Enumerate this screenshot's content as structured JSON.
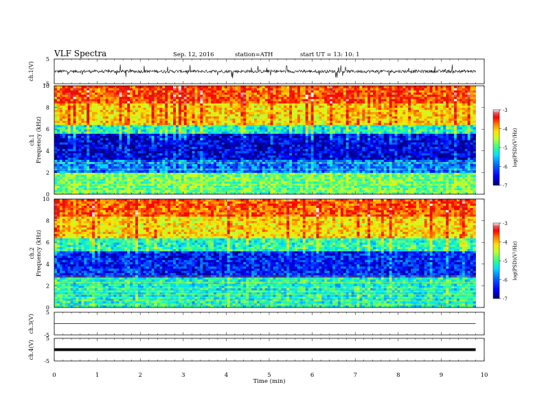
{
  "header": {
    "title": "VLF  Spectra",
    "date": "Sep. 12, 2016",
    "station": "station=ATH",
    "start": "start  UT  =   13: 10: 1"
  },
  "chart_data": [
    {
      "type": "line",
      "panel": "ch1-waveform",
      "ylabel": "ch.1(V)",
      "ylim": [
        -5,
        5
      ],
      "yticks": [
        "5",
        "-5"
      ],
      "xlim": [
        0,
        10
      ],
      "baseline": 0,
      "amplitude_typical": 0.6,
      "spike_max": 1.4
    },
    {
      "type": "heatmap",
      "panel": "ch1-spectrogram",
      "ylabel_top": "ch.1",
      "ylabel": "Frequency  (kHz)",
      "ylim": [
        0,
        10
      ],
      "yticks": [
        "0",
        "2",
        "4",
        "6",
        "8",
        "10"
      ],
      "xlim": [
        0,
        10
      ],
      "data_end_min": 9.8,
      "colorbar": {
        "label": "log(PSD)(V²/Hz)",
        "range": [
          -7,
          -3
        ],
        "ticks": [
          "-3",
          "-4",
          "-5",
          "-6",
          "-7"
        ]
      },
      "bands": [
        {
          "from": 0,
          "to": 2.0,
          "level": -5.3
        },
        {
          "from": 2.0,
          "to": 3.2,
          "level": -6.2
        },
        {
          "from": 3.2,
          "to": 5.6,
          "level": -6.7
        },
        {
          "from": 5.6,
          "to": 6.4,
          "level": -5.6
        },
        {
          "from": 6.4,
          "to": 8.5,
          "level": -4.6
        },
        {
          "from": 8.5,
          "to": 10,
          "level": -4.1
        }
      ]
    },
    {
      "type": "heatmap",
      "panel": "ch2-spectrogram",
      "ylabel_top": "ch.2",
      "ylabel": "Frequency  (kHz)",
      "ylim": [
        0,
        10
      ],
      "yticks": [
        "0",
        "2",
        "4",
        "6",
        "8",
        "10"
      ],
      "xlim": [
        0,
        10
      ],
      "data_end_min": 9.8,
      "colorbar": {
        "label": "log(PSD)(V²/Hz)",
        "range": [
          -7,
          -3
        ],
        "ticks": [
          "-3",
          "-4",
          "-5",
          "-6",
          "-7"
        ]
      },
      "bands": [
        {
          "from": 0,
          "to": 2.8,
          "level": -5.6
        },
        {
          "from": 2.8,
          "to": 5.2,
          "level": -6.5
        },
        {
          "from": 5.2,
          "to": 6.4,
          "level": -5.5
        },
        {
          "from": 6.4,
          "to": 8.5,
          "level": -4.6
        },
        {
          "from": 8.5,
          "to": 10,
          "level": -4.1
        }
      ]
    },
    {
      "type": "line",
      "panel": "ch3-waveform",
      "ylabel": "ch.3(V)",
      "ylim": [
        -5,
        5
      ],
      "yticks": [
        "5",
        "-5"
      ],
      "xlim": [
        0,
        10
      ],
      "baseline": 0,
      "data_end_min": 9.8
    },
    {
      "type": "line",
      "panel": "ch4-waveform",
      "ylabel": "ch.4(V)",
      "ylim": [
        -5,
        5
      ],
      "yticks": [
        "5",
        "-5"
      ],
      "xlim": [
        0,
        10
      ],
      "baseline": 0,
      "data_end_min": 9.8
    }
  ],
  "xaxis": {
    "label": "Time  (min)",
    "ticks": [
      "0",
      "1",
      "2",
      "3",
      "4",
      "5",
      "6",
      "7",
      "8",
      "9",
      "10"
    ]
  },
  "colors": {
    "colormap": [
      "#00007f",
      "#0000ff",
      "#0070ff",
      "#00e0ff",
      "#30ff90",
      "#c0ff30",
      "#ffe000",
      "#ff7000",
      "#ff0000",
      "#d02020",
      "#ffffff"
    ],
    "trace": "#000000"
  }
}
